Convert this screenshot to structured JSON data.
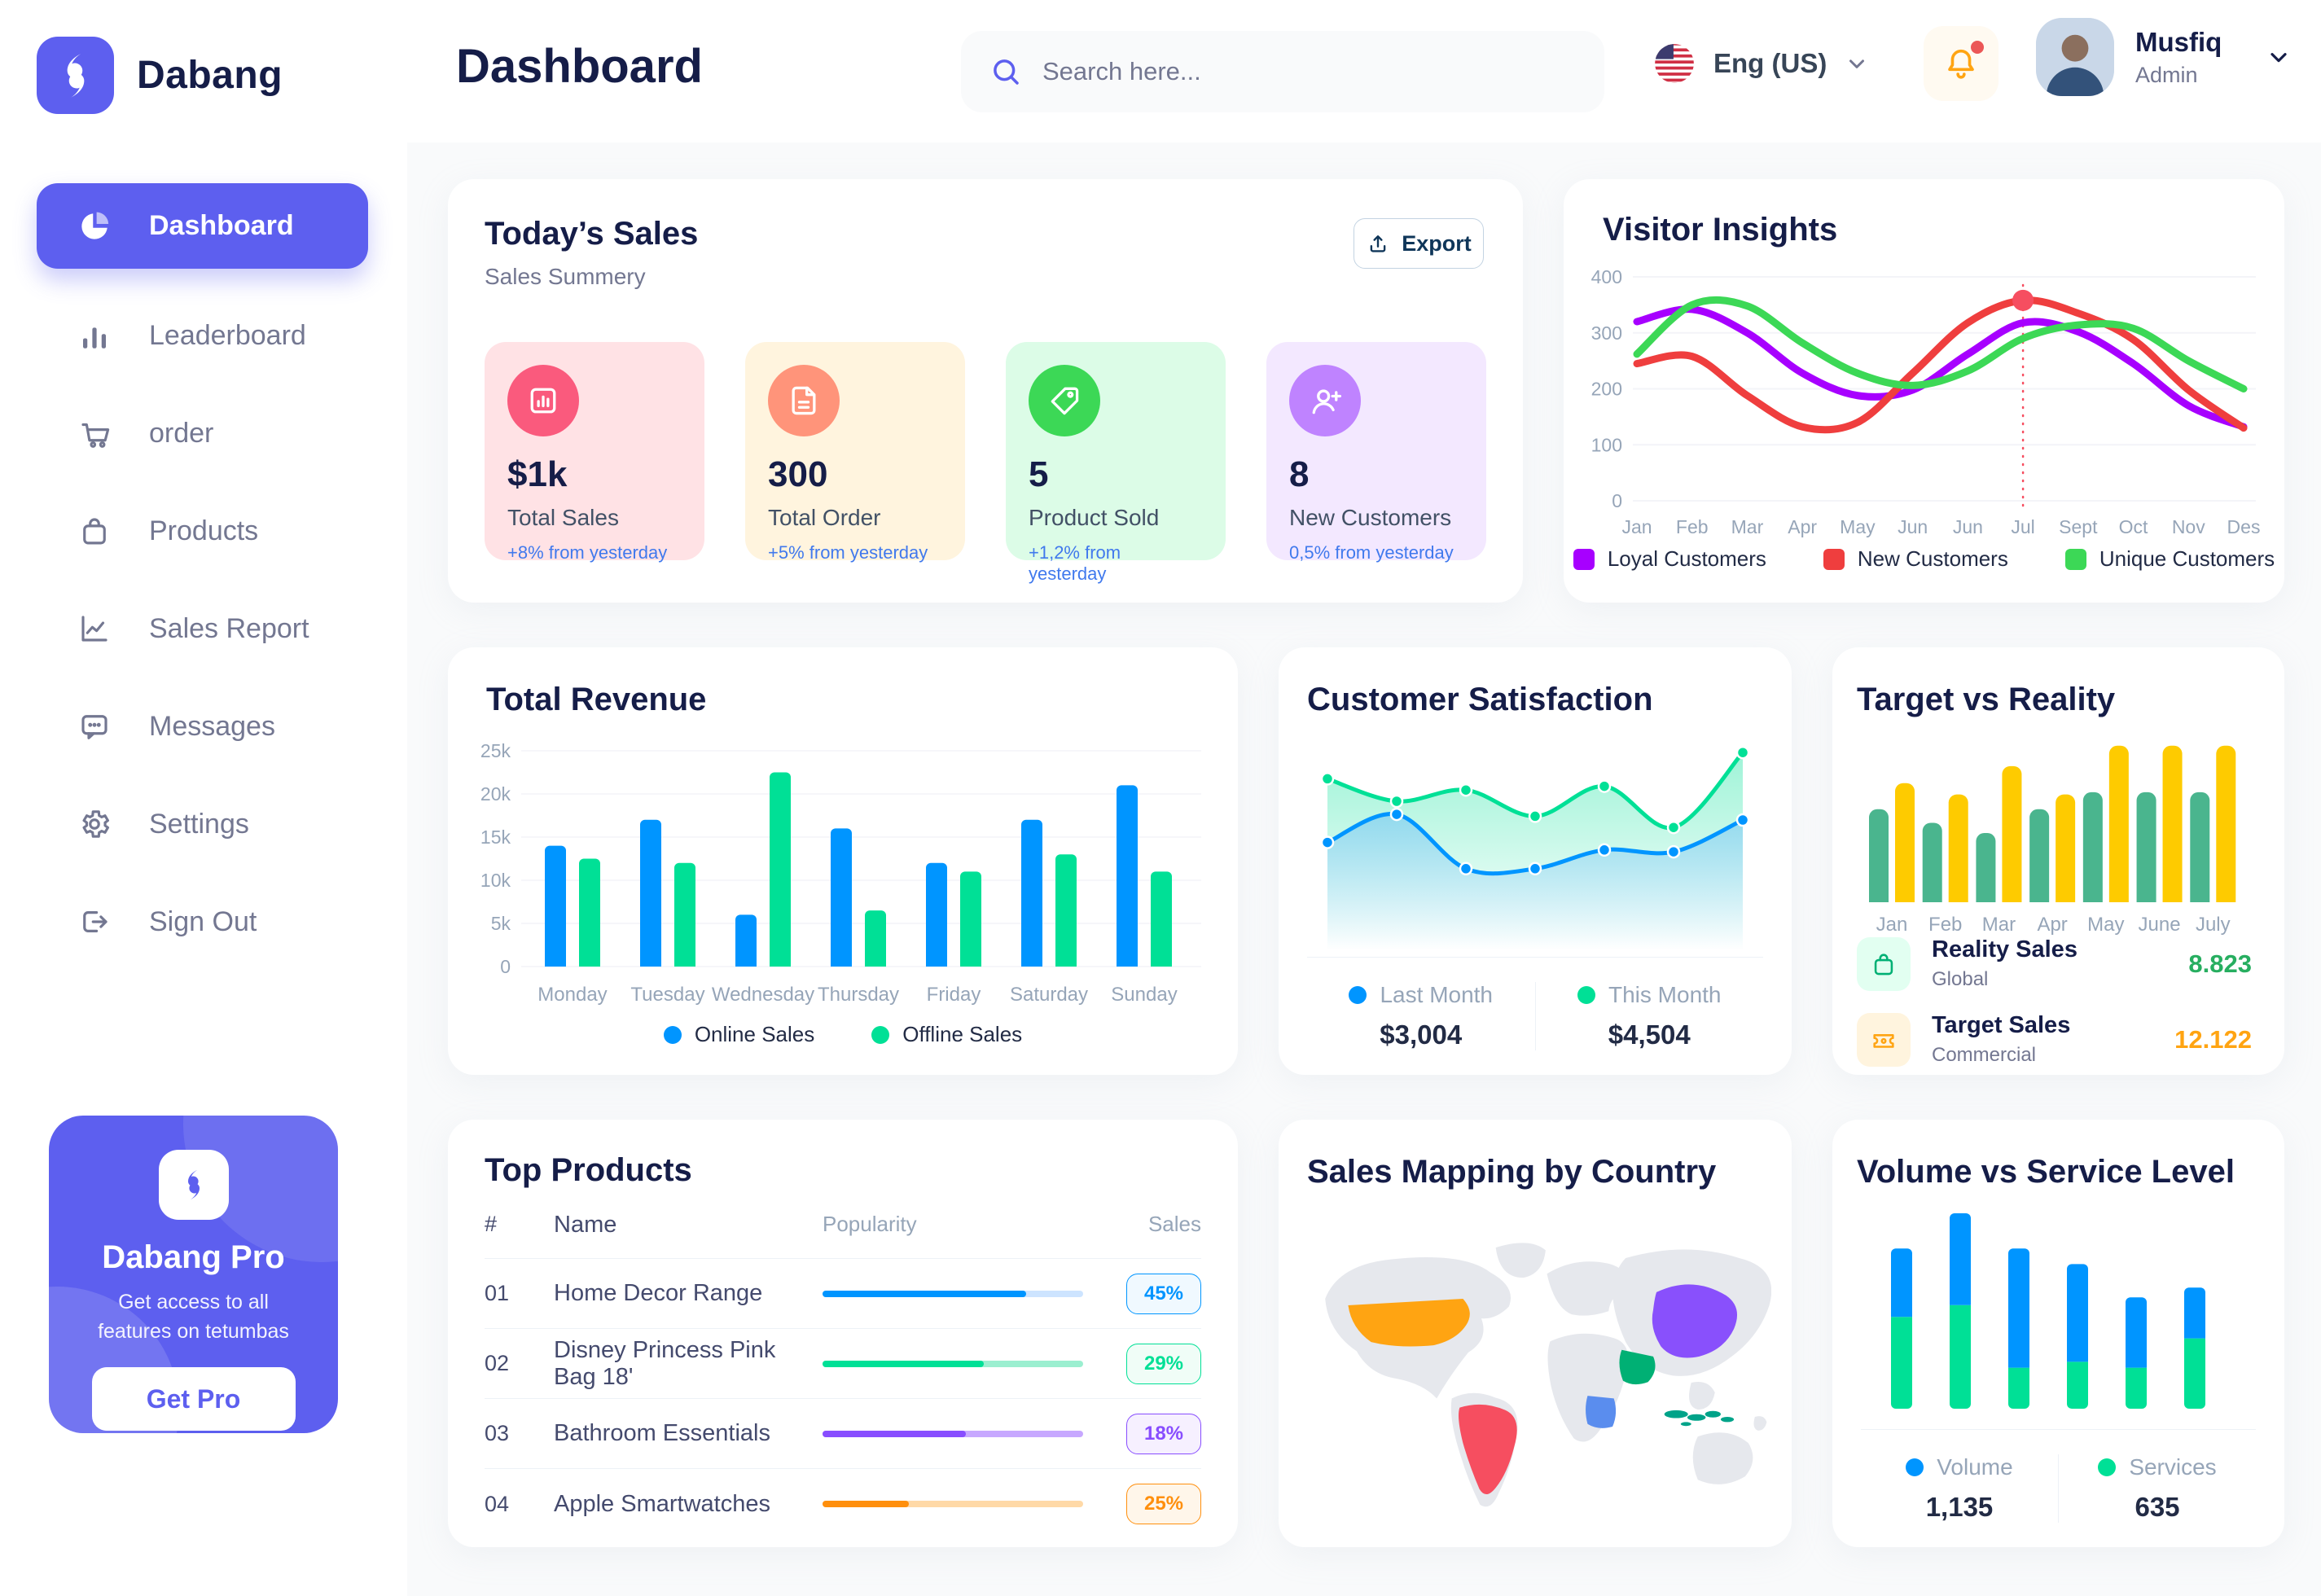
{
  "app": {
    "brand": "Dabang",
    "page_title": "Dashboard",
    "accent_color": "#5D5FEF"
  },
  "header": {
    "search": {
      "placeholder": "Search here..."
    },
    "language": {
      "label": "Eng (US)"
    },
    "user": {
      "name": "Musfiq",
      "role": "Admin"
    }
  },
  "sidebar": {
    "items": [
      {
        "label": "Dashboard",
        "icon": "pie-chart-icon",
        "active": true
      },
      {
        "label": "Leaderboard",
        "icon": "bar-chart-icon",
        "active": false
      },
      {
        "label": "order",
        "icon": "cart-icon",
        "active": false
      },
      {
        "label": "Products",
        "icon": "bag-icon",
        "active": false
      },
      {
        "label": "Sales Report",
        "icon": "line-chart-icon",
        "active": false
      },
      {
        "label": "Messages",
        "icon": "message-icon",
        "active": false
      },
      {
        "label": "Settings",
        "icon": "gear-icon",
        "active": false
      },
      {
        "label": "Sign Out",
        "icon": "sign-out-icon",
        "active": false
      }
    ],
    "pro_card": {
      "title": "Dabang Pro",
      "subtitle": "Get access to all features on tetumbas",
      "cta": "Get Pro"
    }
  },
  "todays_sales": {
    "title": "Today’s Sales",
    "subtitle": "Sales Summery",
    "export_label": "Export",
    "trend_color": "#4079ED",
    "cards": [
      {
        "value": "$1k",
        "label": "Total Sales",
        "trend": "+8% from yesterday",
        "bg": "#FFE2E5",
        "icon_bg": "#FA5A7D",
        "icon": "sales-chart-icon"
      },
      {
        "value": "300",
        "label": "Total Order",
        "trend": "+5% from yesterday",
        "bg": "#FFF4DE",
        "icon_bg": "#FF947A",
        "icon": "order-file-icon"
      },
      {
        "value": "5",
        "label": "Product Sold",
        "trend": "+1,2% from yesterday",
        "bg": "#DCFCE7",
        "icon_bg": "#3CD856",
        "icon": "tag-icon"
      },
      {
        "value": "8",
        "label": "New Customers",
        "trend": "0,5% from yesterday",
        "bg": "#F3E8FF",
        "icon_bg": "#BF83FF",
        "icon": "user-plus-icon"
      }
    ]
  },
  "chart_data": {
    "visitor_insights": {
      "type": "line",
      "title": "Visitor Insights",
      "x": [
        "Jan",
        "Feb",
        "Mar",
        "Apr",
        "May",
        "Jun",
        "Jun",
        "Jul",
        "Sept",
        "Oct",
        "Nov",
        "Des"
      ],
      "ylim": [
        0,
        400
      ],
      "yticks": [
        0,
        100,
        200,
        300,
        400
      ],
      "series": [
        {
          "name": "Loyal Customers",
          "color": "#A700FF",
          "values": [
            320,
            342,
            300,
            228,
            188,
            198,
            262,
            318,
            302,
            245,
            170,
            132
          ]
        },
        {
          "name": "New Customers",
          "color": "#EF3E3E",
          "values": [
            245,
            258,
            188,
            132,
            140,
            228,
            318,
            358,
            335,
            288,
            198,
            130
          ]
        },
        {
          "name": "Unique Customers",
          "color": "#3CD856",
          "values": [
            262,
            350,
            348,
            282,
            228,
            206,
            232,
            290,
            314,
            308,
            250,
            200
          ]
        }
      ],
      "highlight": {
        "x_index": 7,
        "series": "New Customers",
        "value": 358,
        "marker_color": "#F64E60"
      }
    },
    "total_revenue": {
      "type": "bar",
      "title": "Total Revenue",
      "categories": [
        "Monday",
        "Tuesday",
        "Wednesday",
        "Thursday",
        "Friday",
        "Saturday",
        "Sunday"
      ],
      "ylim": [
        0,
        25000
      ],
      "ytick_labels": [
        "0",
        "5k",
        "10k",
        "15k",
        "20k",
        "25k"
      ],
      "series": [
        {
          "name": "Online Sales",
          "color": "#0095FF",
          "values": [
            14000,
            17000,
            6000,
            16000,
            12000,
            17000,
            21000
          ]
        },
        {
          "name": "Offline Sales",
          "color": "#00E096",
          "values": [
            12500,
            12000,
            22500,
            6500,
            11000,
            13000,
            11000
          ]
        }
      ]
    },
    "customer_satisfaction": {
      "type": "area",
      "title": "Customer Satisfaction",
      "ylim": [
        0,
        100
      ],
      "series": [
        {
          "name": "Last Month",
          "value": "$3,004",
          "color": "#0095FF",
          "values": [
            48,
            63,
            34,
            34,
            44,
            43,
            60
          ]
        },
        {
          "name": "This Month",
          "value": "$4,504",
          "color": "#00E096",
          "values": [
            82,
            70,
            76,
            62,
            78,
            56,
            96
          ]
        }
      ]
    },
    "target_vs_reality": {
      "type": "bar",
      "title": "Target vs Reality",
      "categories": [
        "Jan",
        "Feb",
        "Mar",
        "Apr",
        "May",
        "June",
        "July"
      ],
      "ylim": [
        0,
        14
      ],
      "series": [
        {
          "name": "Reality Sales",
          "color": "#4AB58E",
          "values": [
            8.2,
            7.0,
            6.1,
            8.2,
            9.7,
            9.7,
            9.7
          ]
        },
        {
          "name": "Target Sales",
          "color": "#FECB00",
          "values": [
            10.5,
            9.5,
            12.0,
            9.5,
            13.8,
            13.8,
            13.8
          ]
        }
      ],
      "legend": [
        {
          "title": "Reality Sales",
          "subtitle": "Global",
          "value": "8.823",
          "value_color": "#27AE60",
          "icon": "bag-icon",
          "icon_bg": "#E2FFF1",
          "icon_color": "#00B074"
        },
        {
          "title": "Target Sales",
          "subtitle": "Commercial",
          "value": "12.122",
          "value_color": "#FFA412",
          "icon": "ticket-icon",
          "icon_bg": "#FFF4DE",
          "icon_color": "#FFA412"
        }
      ]
    },
    "volume_vs_service": {
      "type": "bar",
      "title": "Volume vs Service Level",
      "stacked": true,
      "series": [
        {
          "name": "Volume",
          "total": "1,135",
          "color": "#0095FF",
          "values": [
            350,
            470,
            610,
            500,
            360,
            260
          ]
        },
        {
          "name": "Services",
          "total": "635",
          "color": "#00E096",
          "values": [
            470,
            530,
            210,
            240,
            210,
            360
          ]
        }
      ]
    }
  },
  "top_products": {
    "title": "Top Products",
    "columns": [
      "#",
      "Name",
      "Popularity",
      "Sales"
    ],
    "rows": [
      {
        "num": "01",
        "name": "Home Decor Range",
        "popularity": 78,
        "sales": "45%",
        "color": "#0095FF",
        "track": "#CDE4FF",
        "badge_bg": "#F0F9FF"
      },
      {
        "num": "02",
        "name": "Disney Princess Pink Bag 18'",
        "popularity": 62,
        "sales": "29%",
        "color": "#00E096",
        "track": "#9BEFD0",
        "badge_bg": "#F0FDF7"
      },
      {
        "num": "03",
        "name": "Bathroom Essentials",
        "popularity": 55,
        "sales": "18%",
        "color": "#884DFF",
        "track": "#C7A8FF",
        "badge_bg": "#F6F0FF"
      },
      {
        "num": "04",
        "name": "Apple Smartwatches",
        "popularity": 33,
        "sales": "25%",
        "color": "#FF8F0D",
        "track": "#FFD9A7",
        "badge_bg": "#FFF6EA"
      }
    ]
  },
  "sales_map": {
    "title": "Sales Mapping by Country",
    "countries": [
      {
        "name": "United States",
        "color": "#FFA412"
      },
      {
        "name": "Brazil",
        "color": "#F64E60"
      },
      {
        "name": "Saudi Arabia",
        "color": "#00B074"
      },
      {
        "name": "DR Congo",
        "color": "#5A8DEE"
      },
      {
        "name": "China",
        "color": "#8950FC"
      },
      {
        "name": "Indonesia",
        "color": "#00A389"
      }
    ]
  }
}
